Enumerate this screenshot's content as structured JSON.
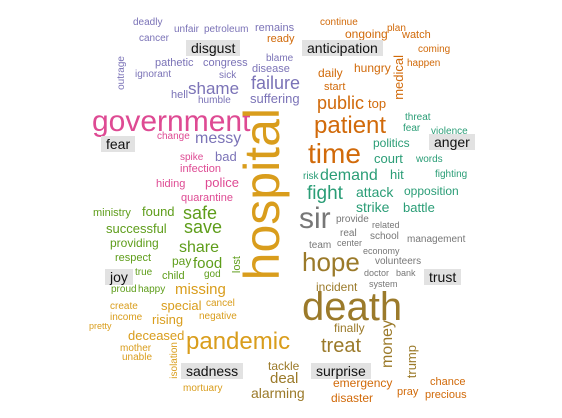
{
  "colors": {
    "disgust": "#7b73b7",
    "anticipation": "#d16a0a",
    "fear": "#2a9d76",
    "anger": "#de4a93",
    "joy": "#5e9d1a",
    "trust": "#777777",
    "sadness": "#d99d1c",
    "surprise": "#9b7a2a",
    "category_bg": "#e2e2e2",
    "category_text": "#111111"
  },
  "categories": {
    "disgust": "disgust",
    "anticipation": "anticipation",
    "fear": "fear",
    "anger": "anger",
    "joy": "joy",
    "trust": "trust",
    "sadness": "sadness",
    "surprise": "surprise"
  },
  "words": {
    "deadly": "deadly",
    "unfair": "unfair",
    "petroleum": "petroleum",
    "remains": "remains",
    "cancer": "cancer",
    "blame": "blame",
    "disease": "disease",
    "pathetic": "pathetic",
    "congress": "congress",
    "outrage": "outrage",
    "ignorant": "ignorant",
    "sick": "sick",
    "shame": "shame",
    "failure": "failure",
    "hell": "hell",
    "humble": "humble",
    "suffering": "suffering",
    "government": "government",
    "messy": "messy",
    "change": "change",
    "bad": "bad",
    "spike": "spike",
    "infection": "infection",
    "hiding": "hiding",
    "police": "police",
    "quarantine": "quarantine",
    "continue": "continue",
    "ongoing": "ongoing",
    "ready": "ready",
    "plan": "plan",
    "watch": "watch",
    "coming": "coming",
    "daily": "daily",
    "hungry": "hungry",
    "happen": "happen",
    "start": "start",
    "public": "public",
    "top": "top",
    "medical": "medical",
    "patient": "patient",
    "time": "time",
    "threat": "threat",
    "violence": "violence",
    "politics": "politics",
    "court": "court",
    "words": "words",
    "risk": "risk",
    "demand": "demand",
    "hit": "hit",
    "fighting": "fighting",
    "fight": "fight",
    "attack": "attack",
    "opposition": "opposition",
    "strike": "strike",
    "battle": "battle",
    "sir": "sir",
    "provide": "provide",
    "related": "related",
    "real": "real",
    "school": "school",
    "management": "management",
    "team": "team",
    "center": "center",
    "economy": "economy",
    "volunteers": "volunteers",
    "doctor": "doctor",
    "bank": "bank",
    "system": "system",
    "hope": "hope",
    "incident": "incident",
    "death": "death",
    "finally": "finally",
    "treat": "treat",
    "money": "money",
    "trump": "trump",
    "tackle": "tackle",
    "deal": "deal",
    "alarming": "alarming",
    "emergency": "emergency",
    "disaster": "disaster",
    "pray": "pray",
    "chance": "chance",
    "precious": "precious",
    "hospital": "hospital",
    "pandemic": "pandemic",
    "ministry": "ministry",
    "found": "found",
    "safe": "safe",
    "save": "save",
    "successful": "successful",
    "providing": "providing",
    "share": "share",
    "respect": "respect",
    "pay": "pay",
    "food": "food",
    "true": "true",
    "child": "child",
    "god": "god",
    "lost": "lost",
    "proud": "proud",
    "happy": "happy",
    "missing": "missing",
    "create": "create",
    "special": "special",
    "cancel": "cancel",
    "income": "income",
    "rising": "rising",
    "negative": "negative",
    "pretty": "pretty",
    "deceased": "deceased",
    "mother": "mother",
    "unable": "unable",
    "isolation": "isolation",
    "mortuary": "mortuary"
  }
}
